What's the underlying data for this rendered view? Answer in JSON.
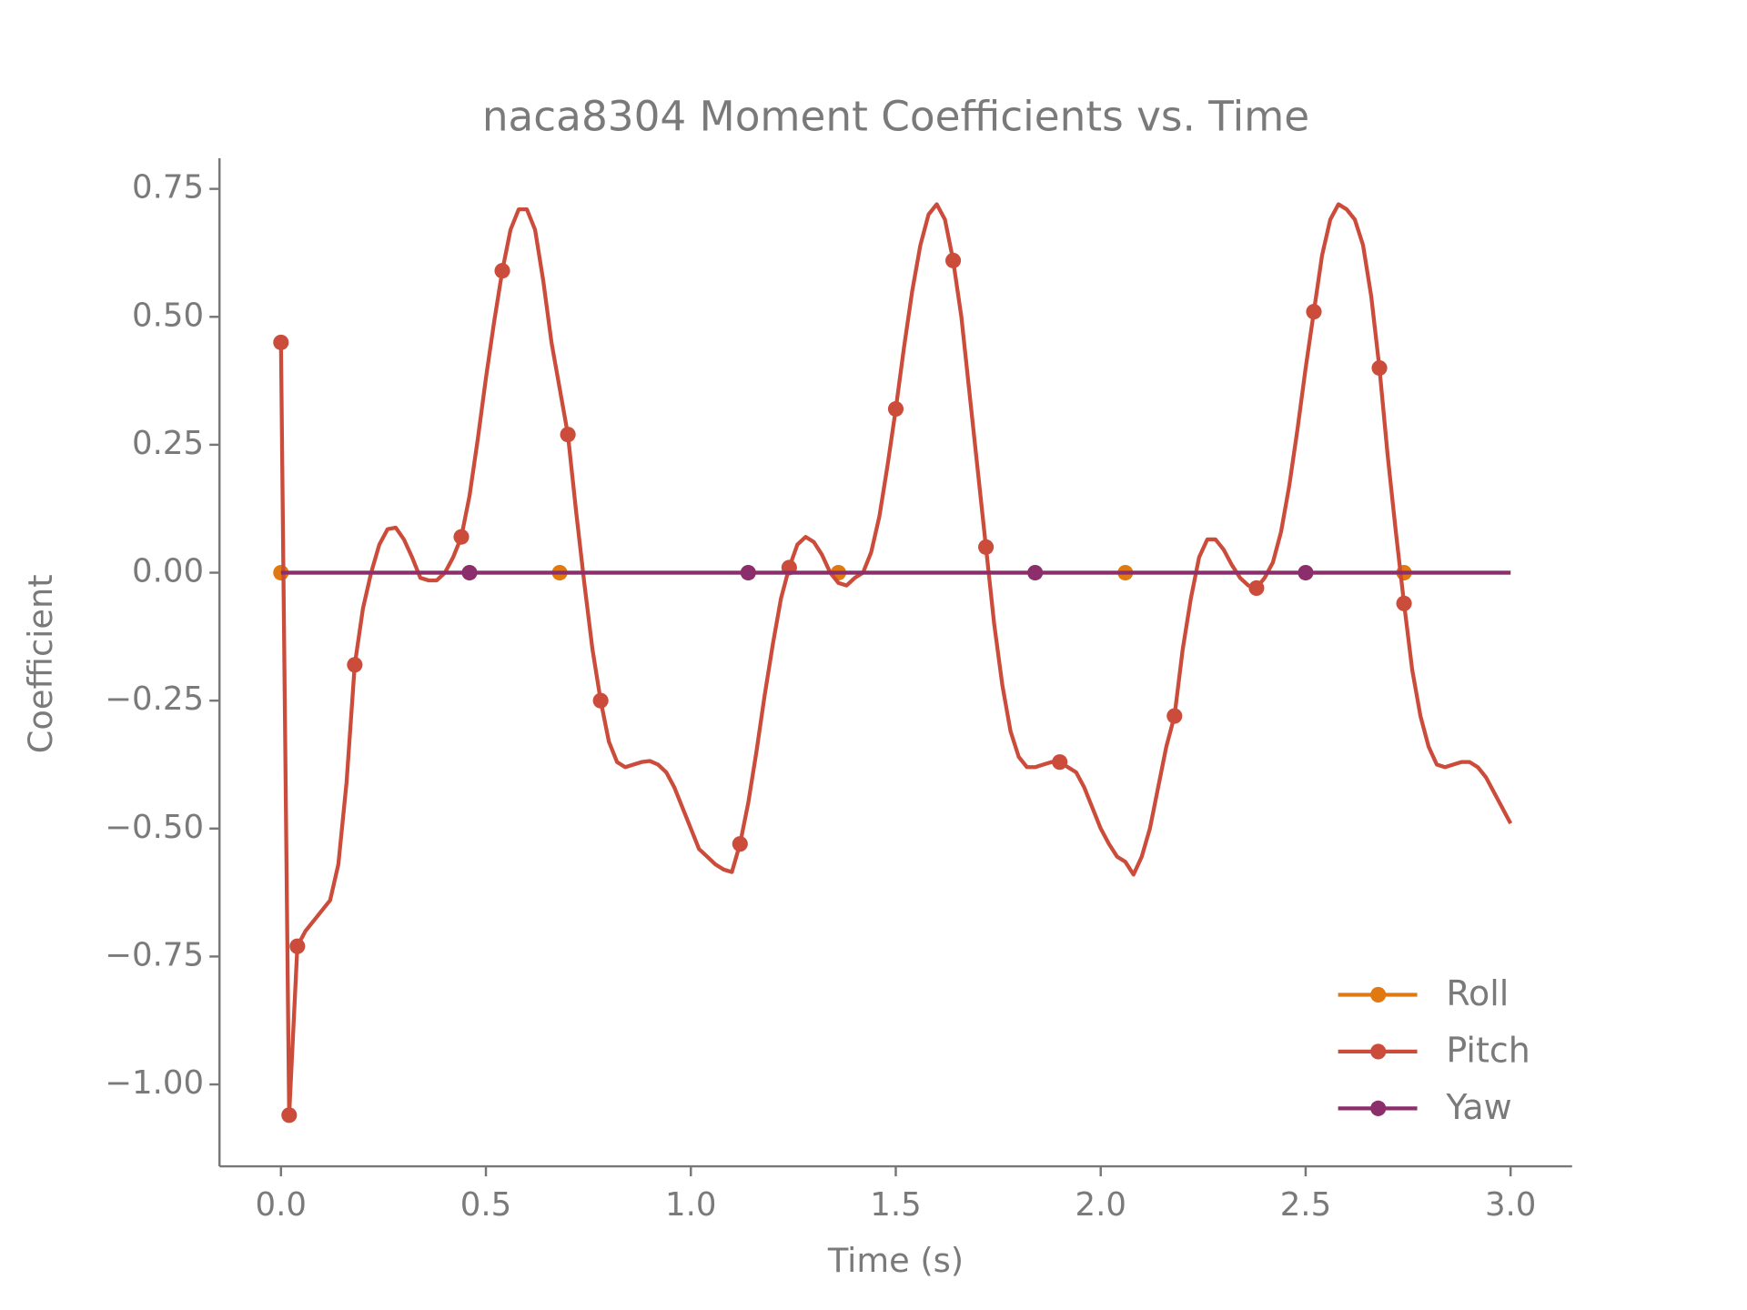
{
  "chart_data": {
    "type": "line",
    "title": "naca8304 Moment Coefficients vs. Time",
    "x_label": "Time (s)",
    "y_label": "Coefficient",
    "x": [
      0,
      0.02,
      0.04,
      0.06,
      0.08,
      0.1,
      0.12,
      0.14,
      0.16,
      0.18,
      0.2,
      0.22,
      0.24,
      0.26,
      0.28,
      0.3,
      0.32,
      0.34,
      0.36,
      0.38,
      0.4,
      0.42,
      0.44,
      0.46,
      0.48,
      0.5,
      0.52,
      0.54,
      0.56,
      0.58,
      0.6,
      0.62,
      0.64,
      0.66,
      0.68,
      0.7,
      0.72,
      0.74,
      0.76,
      0.78,
      0.8,
      0.82,
      0.84,
      0.86,
      0.88,
      0.9,
      0.92,
      0.94,
      0.96,
      0.98,
      1,
      1.02,
      1.04,
      1.06,
      1.08,
      1.1,
      1.12,
      1.14,
      1.16,
      1.18,
      1.2,
      1.22,
      1.24,
      1.26,
      1.28,
      1.3,
      1.32,
      1.34,
      1.36,
      1.38,
      1.4,
      1.42,
      1.44,
      1.46,
      1.48,
      1.5,
      1.52,
      1.54,
      1.56,
      1.58,
      1.6,
      1.62,
      1.64,
      1.66,
      1.68,
      1.7,
      1.72,
      1.74,
      1.76,
      1.78,
      1.8,
      1.82,
      1.84,
      1.86,
      1.88,
      1.9,
      1.92,
      1.94,
      1.96,
      1.98,
      2,
      2.02,
      2.04,
      2.06,
      2.08,
      2.1,
      2.12,
      2.14,
      2.16,
      2.18,
      2.2,
      2.22,
      2.24,
      2.26,
      2.28,
      2.3,
      2.32,
      2.34,
      2.36,
      2.38,
      2.4,
      2.42,
      2.44,
      2.46,
      2.48,
      2.5,
      2.52,
      2.54,
      2.56,
      2.58,
      2.6,
      2.62,
      2.64,
      2.66,
      2.68,
      2.7,
      2.72,
      2.74,
      2.76,
      2.78,
      2.8,
      2.82,
      2.84,
      2.86,
      2.88,
      2.9,
      2.92,
      2.94,
      2.96,
      2.98,
      3
    ],
    "series": [
      {
        "name": "Roll",
        "color": "#e07a10",
        "markevery": [
          0,
          34,
          68,
          103,
          137
        ],
        "values": [
          0,
          0,
          0,
          0,
          0,
          0,
          0,
          0,
          0,
          0,
          0,
          0,
          0,
          0,
          0,
          0,
          0,
          0,
          0,
          0,
          0,
          0,
          0,
          0,
          0,
          0,
          0,
          0,
          0,
          0,
          0,
          0,
          0,
          0,
          0,
          0,
          0,
          0,
          0,
          0,
          0,
          0,
          0,
          0,
          0,
          0,
          0,
          0,
          0,
          0,
          0,
          0,
          0,
          0,
          0,
          0,
          0,
          0,
          0,
          0,
          0,
          0,
          0,
          0,
          0,
          0,
          0,
          0,
          0,
          0,
          0,
          0,
          0,
          0,
          0,
          0,
          0,
          0,
          0,
          0,
          0,
          0,
          0,
          0,
          0,
          0,
          0,
          0,
          0,
          0,
          0,
          0,
          0,
          0,
          0,
          0,
          0,
          0,
          0,
          0,
          0,
          0,
          0,
          0,
          0,
          0,
          0,
          0,
          0,
          0,
          0,
          0,
          0,
          0,
          0,
          0,
          0,
          0,
          0,
          0,
          0,
          0,
          0,
          0,
          0,
          0,
          0,
          0,
          0,
          0,
          0,
          0,
          0,
          0,
          0,
          0,
          0,
          0,
          0,
          0,
          0,
          0,
          0,
          0,
          0,
          0,
          0,
          0,
          0,
          0,
          0
        ]
      },
      {
        "name": "Pitch",
        "color": "#cc4c3b",
        "markevery": [
          0,
          1,
          2,
          9,
          22,
          27,
          35,
          39,
          56,
          62,
          75,
          82,
          86,
          95,
          109,
          119,
          126,
          134,
          137
        ],
        "values": [
          0.45,
          -1.06,
          -0.73,
          -0.7,
          -0.68,
          -0.66,
          -0.64,
          -0.57,
          -0.41,
          -0.18,
          -0.07,
          0,
          0.055,
          0.085,
          0.088,
          0.065,
          0.03,
          -0.01,
          -0.015,
          -0.015,
          0,
          0.03,
          0.07,
          0.15,
          0.26,
          0.38,
          0.49,
          0.59,
          0.67,
          0.71,
          0.71,
          0.67,
          0.57,
          0.45,
          0.36,
          0.27,
          0.12,
          -0.02,
          -0.15,
          -0.25,
          -0.33,
          -0.37,
          -0.38,
          -0.375,
          -0.37,
          -0.368,
          -0.375,
          -0.39,
          -0.42,
          -0.46,
          -0.5,
          -0.54,
          -0.555,
          -0.57,
          -0.58,
          -0.585,
          -0.53,
          -0.45,
          -0.35,
          -0.24,
          -0.14,
          -0.05,
          0.01,
          0.055,
          0.07,
          0.06,
          0.035,
          0,
          -0.02,
          -0.025,
          -0.01,
          0,
          0.04,
          0.11,
          0.21,
          0.32,
          0.44,
          0.55,
          0.64,
          0.7,
          0.72,
          0.69,
          0.61,
          0.5,
          0.35,
          0.2,
          0.05,
          -0.1,
          -0.22,
          -0.31,
          -0.36,
          -0.38,
          -0.38,
          -0.375,
          -0.37,
          -0.37,
          -0.38,
          -0.39,
          -0.42,
          -0.46,
          -0.5,
          -0.53,
          -0.555,
          -0.565,
          -0.59,
          -0.555,
          -0.5,
          -0.42,
          -0.34,
          -0.28,
          -0.15,
          -0.05,
          0.03,
          0.065,
          0.065,
          0.045,
          0.015,
          -0.01,
          -0.025,
          -0.03,
          -0.01,
          0.02,
          0.08,
          0.17,
          0.28,
          0.4,
          0.51,
          0.62,
          0.69,
          0.72,
          0.71,
          0.69,
          0.64,
          0.54,
          0.4,
          0.23,
          0.08,
          -0.06,
          -0.19,
          -0.28,
          -0.34,
          -0.375,
          -0.38,
          -0.375,
          -0.37,
          -0.37,
          -0.38,
          -0.4,
          -0.43,
          -0.46,
          -0.49
        ]
      },
      {
        "name": "Yaw",
        "color": "#8b2e6b",
        "markevery": [
          23,
          57,
          92,
          125
        ],
        "values": [
          0,
          0,
          0,
          0,
          0,
          0,
          0,
          0,
          0,
          0,
          0,
          0,
          0,
          0,
          0,
          0,
          0,
          0,
          0,
          0,
          0,
          0,
          0,
          0,
          0,
          0,
          0,
          0,
          0,
          0,
          0,
          0,
          0,
          0,
          0,
          0,
          0,
          0,
          0,
          0,
          0,
          0,
          0,
          0,
          0,
          0,
          0,
          0,
          0,
          0,
          0,
          0,
          0,
          0,
          0,
          0,
          0,
          0,
          0,
          0,
          0,
          0,
          0,
          0,
          0,
          0,
          0,
          0,
          0,
          0,
          0,
          0,
          0,
          0,
          0,
          0,
          0,
          0,
          0,
          0,
          0,
          0,
          0,
          0,
          0,
          0,
          0,
          0,
          0,
          0,
          0,
          0,
          0,
          0,
          0,
          0,
          0,
          0,
          0,
          0,
          0,
          0,
          0,
          0,
          0,
          0,
          0,
          0,
          0,
          0,
          0,
          0,
          0,
          0,
          0,
          0,
          0,
          0,
          0,
          0,
          0,
          0,
          0,
          0,
          0,
          0,
          0,
          0,
          0,
          0,
          0,
          0,
          0,
          0,
          0,
          0,
          0,
          0,
          0,
          0,
          0,
          0,
          0,
          0,
          0,
          0,
          0,
          0,
          0,
          0,
          0
        ]
      }
    ],
    "xlim": [
      -0.15,
      3.15
    ],
    "ylim": [
      -1.16,
      0.81
    ],
    "xticks": [
      {
        "value": 0,
        "label": "0.0"
      },
      0.5,
      {
        "value": 1,
        "label": "1.0"
      },
      1.5,
      {
        "value": 2,
        "label": "2.0"
      },
      2.5,
      {
        "value": 3,
        "label": "3.0"
      }
    ],
    "yticks": [
      {
        "value": -1,
        "label": "−1.00"
      },
      {
        "value": -0.75,
        "label": "−0.75"
      },
      {
        "value": -0.5,
        "label": "−0.50"
      },
      {
        "value": -0.25,
        "label": "−0.25"
      },
      {
        "value": 0,
        "label": "0.00"
      },
      {
        "value": 0.25,
        "label": "0.25"
      },
      {
        "value": 0.5,
        "label": "0.50"
      },
      {
        "value": 0.75,
        "label": "0.75"
      }
    ],
    "grid": false,
    "legend": "lower right"
  }
}
